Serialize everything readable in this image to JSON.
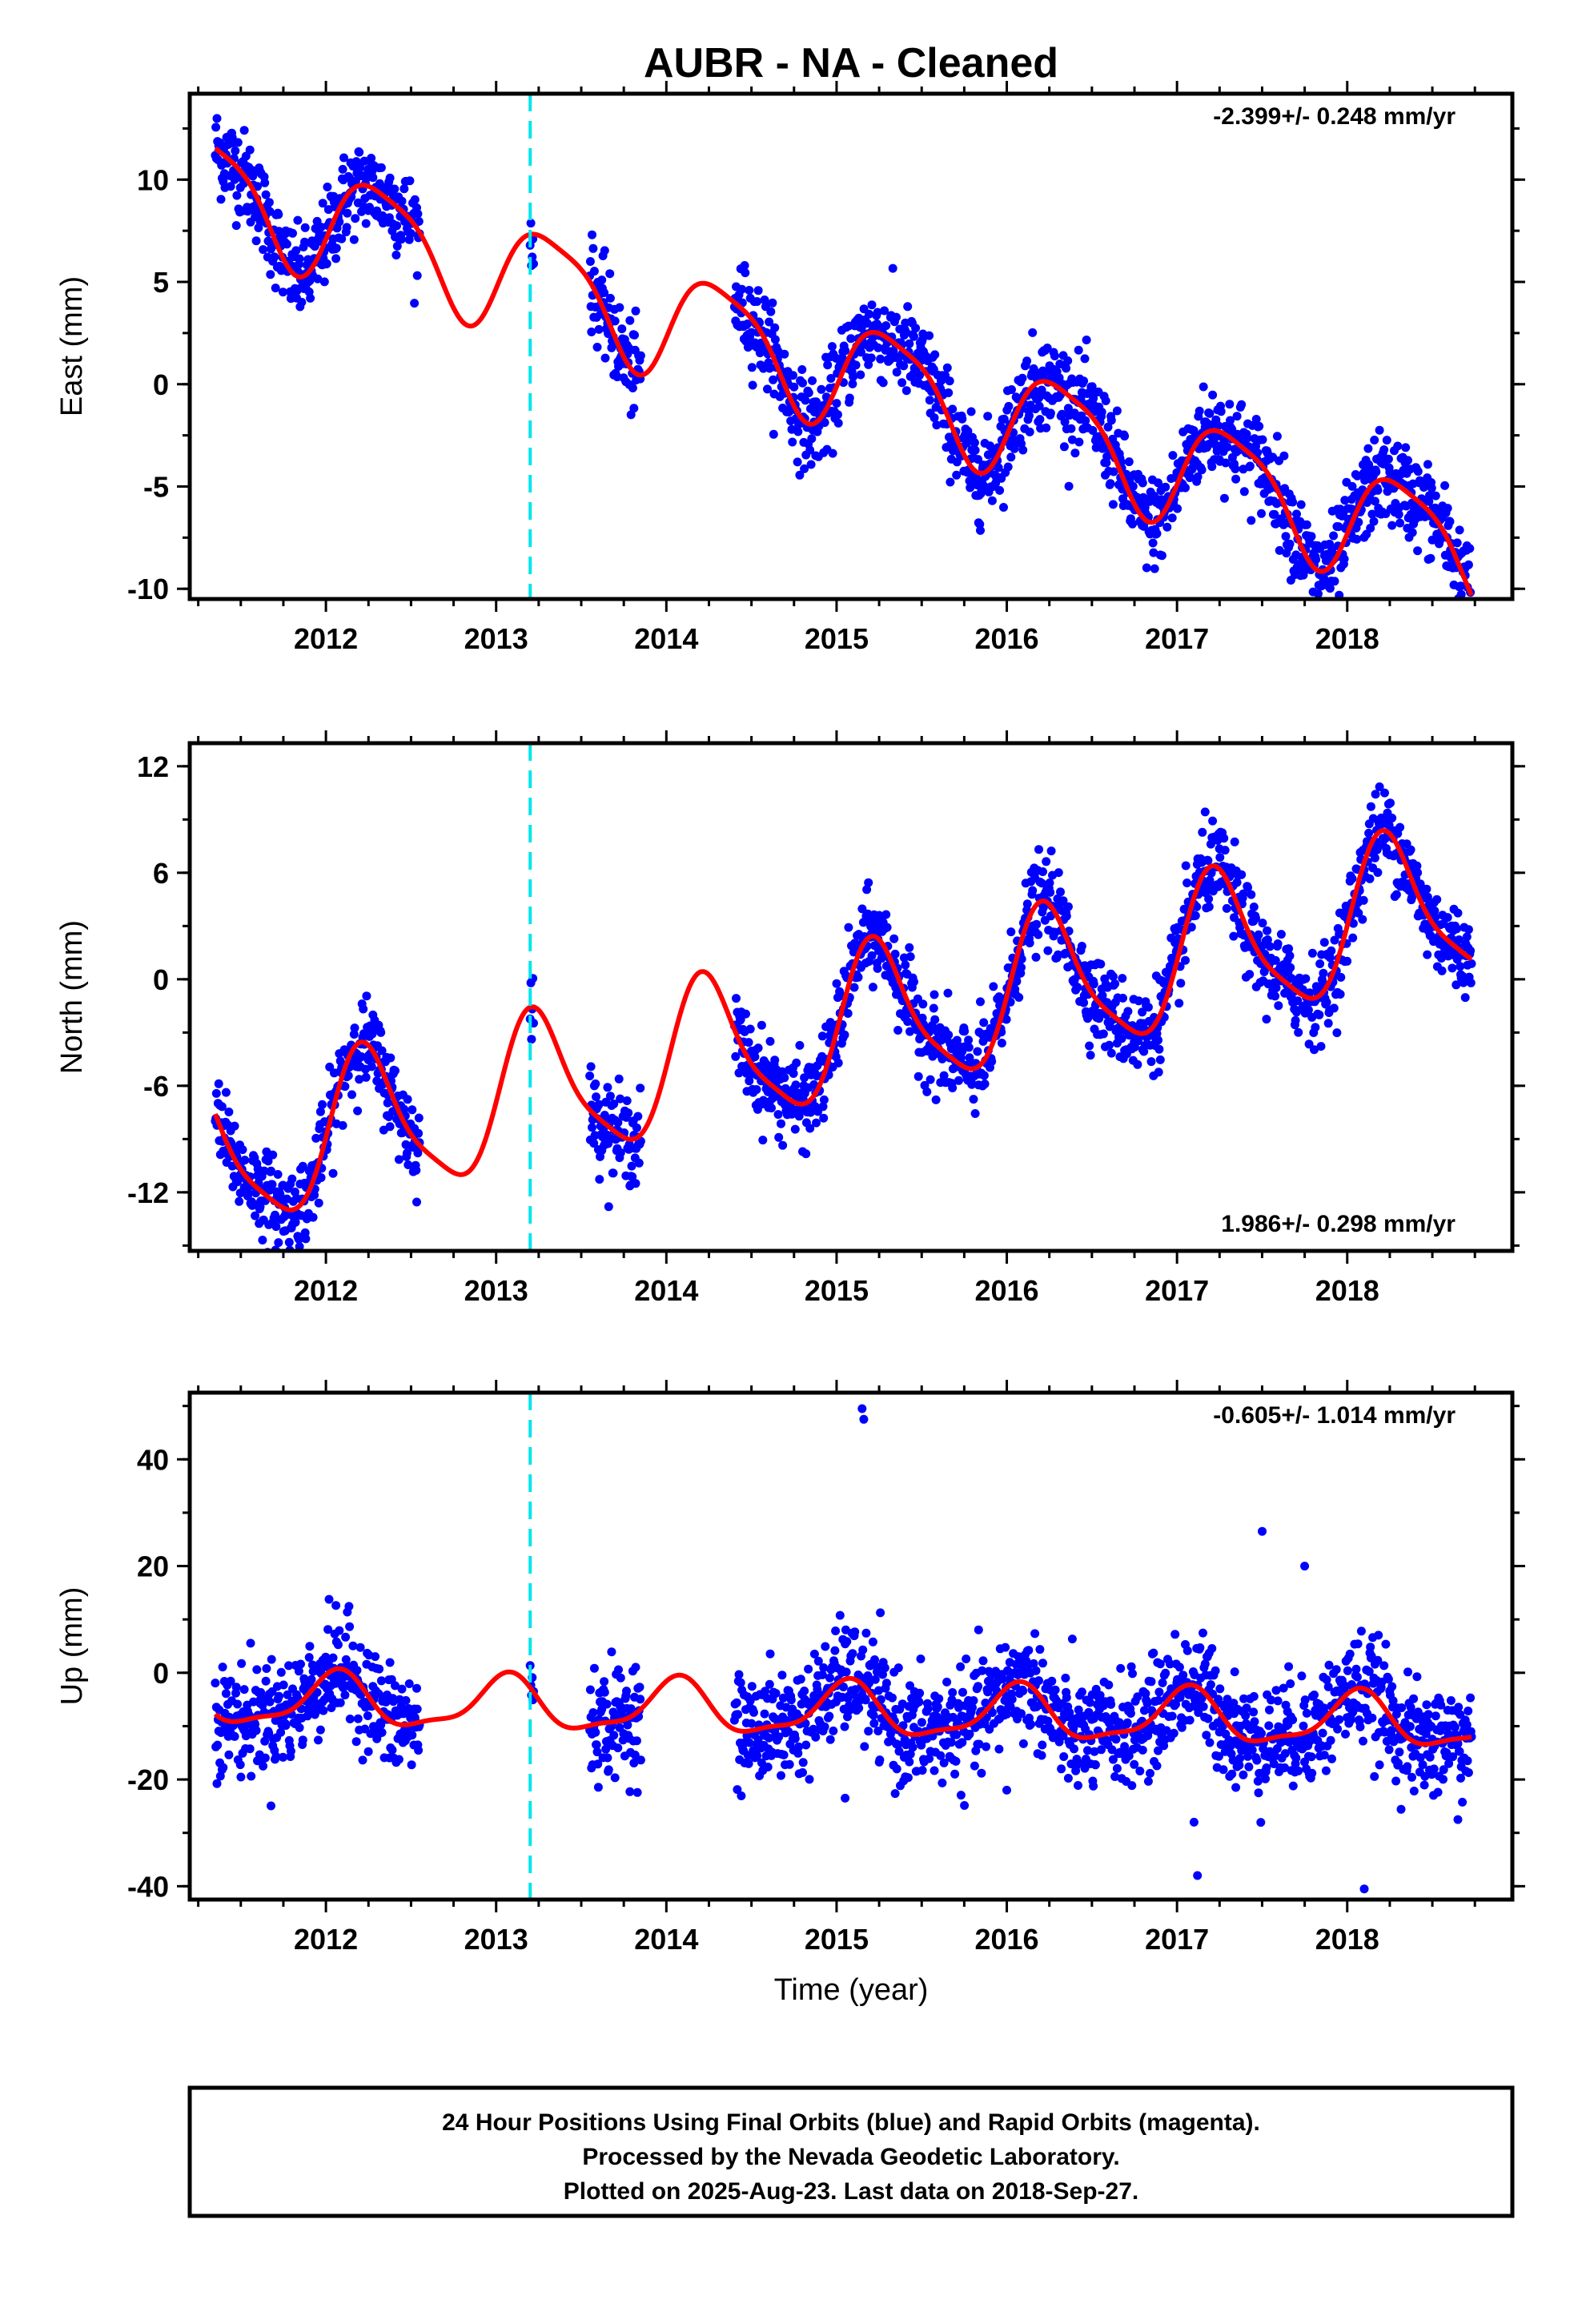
{
  "figure": {
    "title": "AUBR  - NA - Cleaned",
    "footer": [
      "24 Hour Positions Using Final Orbits (blue) and Rapid Orbits (magenta).",
      "Processed by the Nevada Geodetic Laboratory.",
      "Plotted on 2025-Aug-23. Last data on 2018-Sep-27."
    ],
    "colors": {
      "data_points": "#0000ff",
      "model_fit": "#ff0000",
      "equipment_change_line": "#00e5ee",
      "frame": "#000000"
    }
  },
  "chart_data": [
    {
      "type": "scatter",
      "component": "East",
      "ylabel": "East (mm)",
      "xlabel": "",
      "rate_label": "-2.399+/- 0.248 mm/yr",
      "xlim": [
        2011.2,
        2018.97
      ],
      "ylim": [
        -10.5,
        14.2
      ],
      "yticks": [
        -10,
        -5,
        0,
        5,
        10
      ],
      "xticks": [
        2012,
        2013,
        2014,
        2015,
        2016,
        2017,
        2018
      ],
      "vertical_marker_x": 2013.2,
      "data_segments": [
        [
          2011.35,
          2012.55
        ],
        [
          2013.2,
          2013.22
        ],
        [
          2013.55,
          2013.85
        ],
        [
          2014.4,
          2018.73
        ]
      ],
      "model": {
        "start_value": 9.7,
        "linear_rate": -2.399,
        "annual_amp": 2.6,
        "annual_phase": -0.42,
        "semiannual_amp": 0.6,
        "semiannual_phase": 0.2,
        "offset_at_marker": 0
      },
      "noise_sigma": 1.1
    },
    {
      "type": "scatter",
      "component": "North",
      "ylabel": "North (mm)",
      "xlabel": "",
      "rate_label": "1.986+/- 0.298 mm/yr",
      "xlim": [
        2011.2,
        2018.97
      ],
      "ylim": [
        -15.3,
        13.3
      ],
      "yticks": [
        -12,
        -6,
        0,
        6,
        12
      ],
      "xticks": [
        2012,
        2013,
        2014,
        2015,
        2016,
        2017,
        2018
      ],
      "vertical_marker_x": 2013.2,
      "data_segments": [
        [
          2011.35,
          2012.55
        ],
        [
          2013.2,
          2013.22
        ],
        [
          2013.55,
          2013.85
        ],
        [
          2014.4,
          2018.73
        ]
      ],
      "model": {
        "start_value": -10.2,
        "linear_rate": 1.986,
        "annual_amp": 4.1,
        "annual_phase": 0.1,
        "semiannual_amp": 0.9,
        "semiannual_phase": -0.6,
        "offset_at_marker": 0
      },
      "noise_sigma": 1.2
    },
    {
      "type": "scatter",
      "component": "Up",
      "ylabel": "Up (mm)",
      "xlabel": "Time (year)",
      "rate_label": "-0.605+/- 1.014 mm/yr",
      "xlim": [
        2011.2,
        2018.97
      ],
      "ylim": [
        -42.5,
        52.5
      ],
      "yticks": [
        -40,
        -20,
        0,
        20,
        40
      ],
      "xticks": [
        2012,
        2013,
        2014,
        2015,
        2016,
        2017,
        2018
      ],
      "vertical_marker_x": 2013.2,
      "data_segments": [
        [
          2011.35,
          2012.55
        ],
        [
          2013.2,
          2013.22
        ],
        [
          2013.55,
          2013.85
        ],
        [
          2014.4,
          2018.73
        ]
      ],
      "model": {
        "start_value": -5,
        "linear_rate": -0.605,
        "annual_amp": 4.8,
        "annual_phase": 1.2,
        "semiannual_amp": 1.5,
        "semiannual_phase": 0.4,
        "offset_at_marker": 8
      },
      "noise_sigma": 5.0,
      "outliers": [
        [
          2015.15,
          49.5
        ],
        [
          2015.16,
          47.5
        ],
        [
          2017.5,
          26.5
        ],
        [
          2017.12,
          -38
        ],
        [
          2018.1,
          -40.5
        ],
        [
          2015.05,
          -23.5
        ],
        [
          2016.0,
          -22
        ],
        [
          2016.32,
          -18
        ],
        [
          2017.1,
          -28
        ],
        [
          2018.65,
          -27.5
        ],
        [
          2017.75,
          20
        ]
      ]
    }
  ]
}
